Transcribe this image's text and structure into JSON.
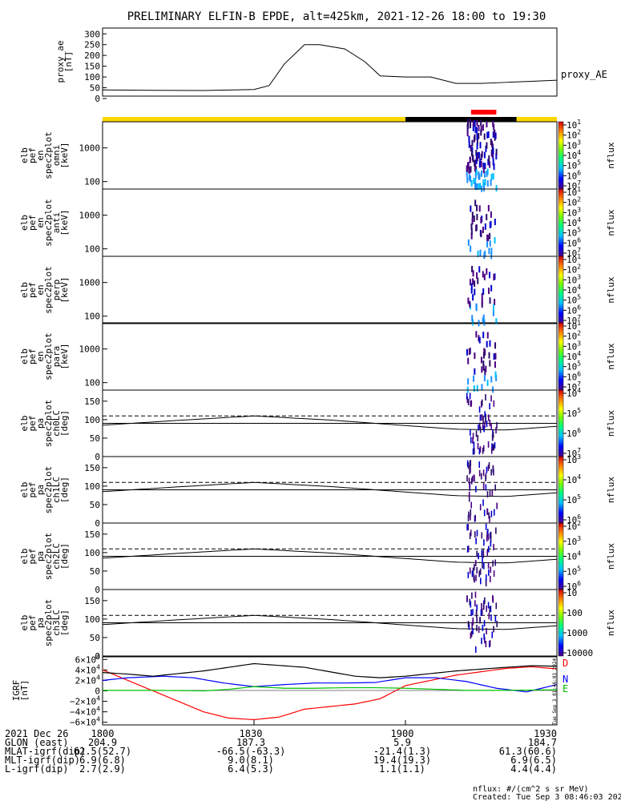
{
  "title": "PRELIMINARY ELFIN-B EPDE, alt=425km, 2021-12-26 18:00 to 19:30",
  "proxy_ae": {
    "ylabel_lines": [
      "proxy_ae",
      "[nT]"
    ],
    "yticks": [
      "300",
      "250",
      "200",
      "150",
      "100",
      "50",
      "0"
    ],
    "legend": "proxy_AE"
  },
  "spec_panels": [
    {
      "ylabel_lines": [
        "elb",
        "pef",
        "en",
        "spec2plot",
        "omni",
        "[keV]"
      ],
      "yticks": [
        "1000",
        "100"
      ],
      "cbar_ticks": [
        "10^7",
        "10^6",
        "10^5",
        "10^4",
        "10^3",
        "10^2",
        "10^1"
      ],
      "cbar_label": "nflux"
    },
    {
      "ylabel_lines": [
        "elb",
        "pef",
        "en",
        "spec2plot",
        "anti",
        "[keV]"
      ],
      "yticks": [
        "1000",
        "100"
      ],
      "cbar_ticks": [
        "10^7",
        "10^6",
        "10^5",
        "10^4",
        "10^3",
        "10^2",
        "10^1"
      ],
      "cbar_label": "nflux"
    },
    {
      "ylabel_lines": [
        "elb",
        "pef",
        "en",
        "spec2plot",
        "perp",
        "[keV]"
      ],
      "yticks": [
        "1000",
        "100"
      ],
      "cbar_ticks": [
        "10^7",
        "10^6",
        "10^5",
        "10^4",
        "10^3",
        "10^2",
        "10^1"
      ],
      "cbar_label": "nflux"
    },
    {
      "ylabel_lines": [
        "elb",
        "pef",
        "en",
        "spec2plot",
        "para",
        "[keV]"
      ],
      "yticks": [
        "1000",
        "100"
      ],
      "cbar_ticks": [
        "10^7",
        "10^6",
        "10^5",
        "10^4",
        "10^3",
        "10^2",
        "10^1"
      ],
      "cbar_label": "nflux"
    }
  ],
  "pa_panels": [
    {
      "ylabel_lines": [
        "elb",
        "pef",
        "pa",
        "spec2plot",
        "ch0LC",
        "[deg]"
      ],
      "yticks": [
        "150",
        "100",
        "50",
        "0"
      ],
      "cbar_ticks": [
        "10^7",
        "10^6",
        "10^5",
        "10^4"
      ],
      "cbar_label": "nflux"
    },
    {
      "ylabel_lines": [
        "elb",
        "pef",
        "pa",
        "spec2plot",
        "ch1LC",
        "[deg]"
      ],
      "yticks": [
        "150",
        "100",
        "50",
        "0"
      ],
      "cbar_ticks": [
        "10^6",
        "10^5",
        "10^4",
        "10^3"
      ],
      "cbar_label": "nflux"
    },
    {
      "ylabel_lines": [
        "elb",
        "pef",
        "pa",
        "spec2plot",
        "ch2LC",
        "[deg]"
      ],
      "yticks": [
        "150",
        "100",
        "50",
        "0"
      ],
      "cbar_ticks": [
        "10^6",
        "10^5",
        "10^4",
        "10^3",
        "10^2"
      ],
      "cbar_label": "nflux"
    },
    {
      "ylabel_lines": [
        "elb",
        "pef",
        "pa",
        "spec2plot",
        "ch3LC",
        "[deg]"
      ],
      "yticks": [
        "150",
        "100",
        "50",
        "0"
      ],
      "cbar_ticks": [
        "10000",
        "1000",
        "100",
        "10"
      ],
      "cbar_label": "nflux"
    }
  ],
  "igrf": {
    "ylabel_lines": [
      "IGRF",
      "[nT]"
    ],
    "yticks": [
      "6×10^4",
      "4×10^4",
      "2×10^4",
      "0",
      "−2×10^4",
      "−4×10^4",
      "−6×10^4"
    ],
    "legend": [
      "D",
      "N",
      "E"
    ],
    "side_stamp": "Tue Sep 3 01:46:03 2024"
  },
  "colors": {
    "proxy_ae": "#000000",
    "bar_yellow": "#ffd700",
    "bar_black": "#000000",
    "bar_red": "#ff0000",
    "igrf_d": "#ff0000",
    "igrf_n": "#0000ff",
    "igrf_e": "#00c000",
    "igrf_total": "#000000"
  },
  "footer": {
    "rows": [
      {
        "label": "2021 Dec 26",
        "values": [
          "1800",
          "1830",
          "1900",
          "1930"
        ]
      },
      {
        "label": "GLON (east)",
        "values": [
          "204.9",
          "187.3",
          "5.9",
          "184.7"
        ]
      },
      {
        "label": "MLAT-igrf(dip)",
        "values": [
          "62.5(52.7)",
          "-66.5(-63.3)",
          "-21.4(1.3)",
          "61.3(60.6)"
        ]
      },
      {
        "label": "MLT-igrf(dip)",
        "values": [
          "6.9(6.8)",
          "9.0(8.1)",
          "19.4(19.3)",
          "6.9(6.5)"
        ]
      },
      {
        "label": "L-igrf(dip)",
        "values": [
          "2.7(2.9)",
          "6.4(5.3)",
          "1.1(1.1)",
          "4.4(4.4)"
        ]
      }
    ],
    "units_note": "nflux: #/(cm^2 s sr MeV)",
    "created": "Created: Tue Sep  3 08:46:03 2024"
  },
  "chart_data": {
    "type": "line",
    "x_range": [
      "2021-12-26 18:00",
      "2021-12-26 19:30"
    ],
    "x_ticks": [
      "1800",
      "1830",
      "1900",
      "1930"
    ],
    "proxy_ae": {
      "t_min": [
        0,
        10,
        20,
        30,
        33,
        36,
        40,
        43,
        48,
        52,
        55,
        60,
        65,
        70,
        75,
        80,
        85,
        90
      ],
      "values": [
        40,
        38,
        37,
        42,
        60,
        160,
        250,
        250,
        230,
        170,
        105,
        100,
        100,
        70,
        70,
        75,
        80,
        85
      ],
      "ylim": [
        0,
        300
      ]
    },
    "spec_energy_ylim_keV": [
      60,
      6000
    ],
    "spec_energy_log": true,
    "pa_ylim_deg": [
      0,
      180
    ],
    "pa_dashed_deg": 110,
    "pa_solid_deg": 90,
    "pa_loss_cone": {
      "t_min": [
        0,
        15,
        30,
        45,
        60,
        70,
        80,
        90
      ],
      "values": [
        85,
        98,
        110,
        99,
        84,
        74,
        72,
        82
      ]
    },
    "science_zone_min": [
      60,
      82
    ],
    "red_bar_min": [
      73,
      78
    ],
    "precipitation_min": [
      72,
      78
    ],
    "igrf_ylim": [
      -65000,
      65000
    ],
    "igrf_series": [
      {
        "name": "D",
        "t_min": [
          0,
          5,
          10,
          20,
          25,
          30,
          35,
          40,
          50,
          55,
          60,
          70,
          80,
          85,
          90
        ],
        "values": [
          40000,
          20000,
          0,
          -40000,
          -52000,
          -55000,
          -50000,
          -35000,
          -25000,
          -15000,
          10000,
          30000,
          43000,
          46000,
          42000
        ]
      },
      {
        "name": "N",
        "t_min": [
          0,
          5,
          12,
          18,
          24,
          30,
          36,
          42,
          48,
          54,
          60,
          66,
          72,
          78,
          84,
          90
        ],
        "values": [
          20000,
          25000,
          28000,
          25000,
          15000,
          8000,
          12000,
          15000,
          15000,
          16000,
          25000,
          25000,
          18000,
          5000,
          -2000,
          12000
        ]
      },
      {
        "name": "E",
        "t_min": [
          0,
          10,
          20,
          25,
          30,
          36,
          42,
          48,
          54,
          60,
          66,
          72,
          80,
          90
        ],
        "values": [
          1000,
          1000,
          0,
          3000,
          8000,
          5000,
          5000,
          6000,
          6000,
          5000,
          3000,
          1000,
          1000,
          2000
        ]
      },
      {
        "name": "|B|",
        "t_min": [
          0,
          5,
          10,
          20,
          30,
          40,
          50,
          55,
          60,
          70,
          80,
          85,
          90
        ],
        "values": [
          35000,
          32000,
          28000,
          38000,
          52000,
          45000,
          28000,
          25000,
          28000,
          38000,
          45000,
          48000,
          47000
        ]
      }
    ]
  }
}
